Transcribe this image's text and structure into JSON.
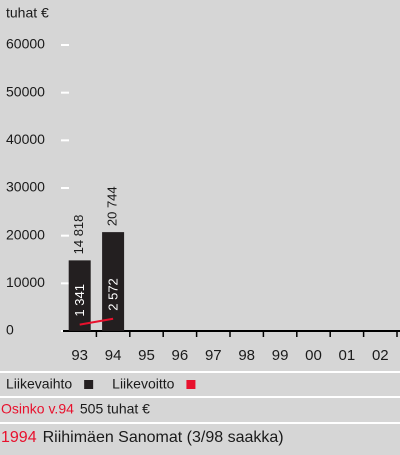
{
  "chart_data": {
    "type": "bar",
    "unit_label": "tuhat €",
    "categories": [
      "93",
      "94",
      "95",
      "96",
      "97",
      "98",
      "99",
      "00",
      "01",
      "02"
    ],
    "series": [
      {
        "name": "Liikevaihto",
        "type": "bar",
        "color": "#231f20",
        "values": [
          14818,
          20744,
          null,
          null,
          null,
          null,
          null,
          null,
          null,
          null
        ],
        "value_labels": [
          "14 818",
          "20 744",
          null,
          null,
          null,
          null,
          null,
          null,
          null,
          null
        ]
      },
      {
        "name": "Liikevoitto",
        "type": "line",
        "color": "#e8112d",
        "values": [
          1341,
          2572,
          null,
          null,
          null,
          null,
          null,
          null,
          null,
          null
        ],
        "value_labels": [
          "1 341",
          "2 572",
          null,
          null,
          null,
          null,
          null,
          null,
          null,
          null
        ]
      }
    ],
    "ylim": [
      0,
      60000
    ],
    "yticks": [
      0,
      10000,
      20000,
      30000,
      40000,
      50000,
      60000
    ]
  },
  "footer": [
    {
      "label": "Osinko v.94",
      "text": "505 tuhat €"
    },
    {
      "label": "1994",
      "text": "Riihimäen Sanomat (3/98 saakka)"
    }
  ]
}
